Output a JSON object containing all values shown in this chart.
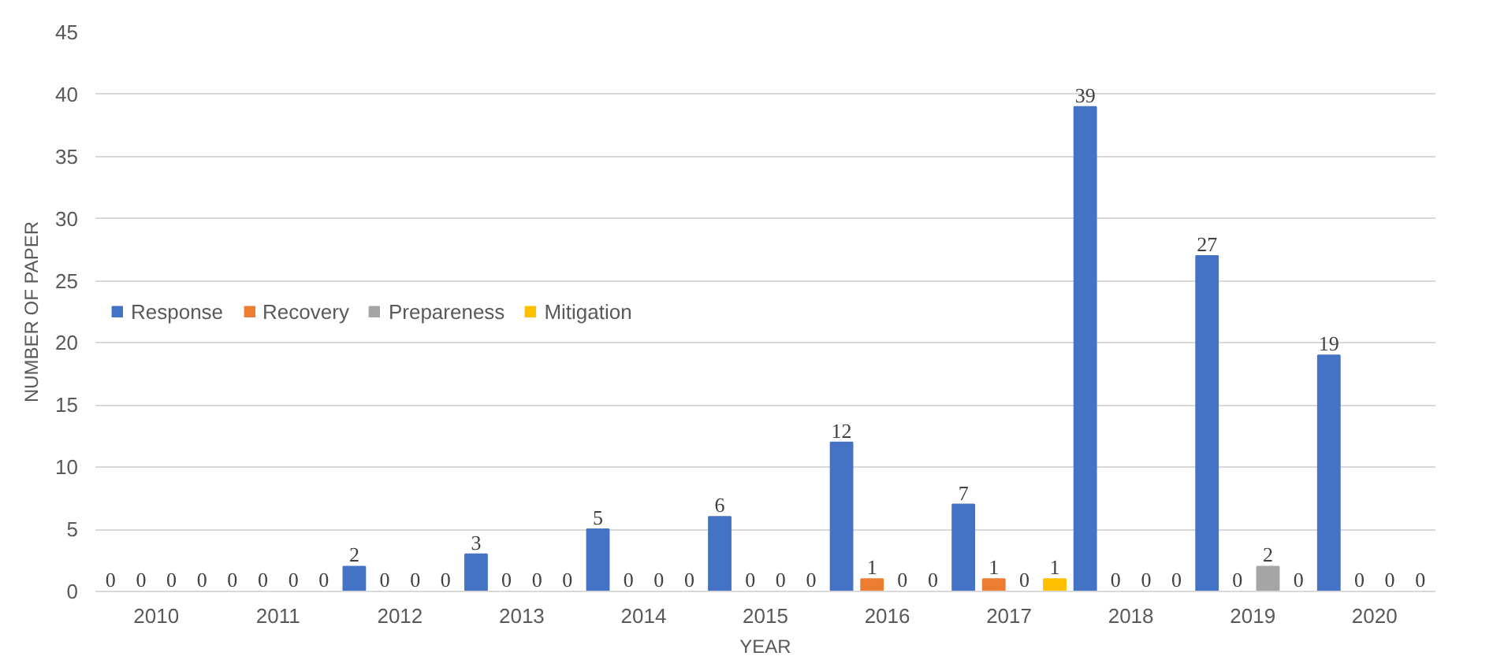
{
  "chart_data": {
    "type": "bar",
    "xlabel": "YEAR",
    "ylabel": "NUMBER OF PAPER",
    "categories": [
      "2010",
      "2011",
      "2012",
      "2013",
      "2014",
      "2015",
      "2016",
      "2017",
      "2018",
      "2019",
      "2020"
    ],
    "series": [
      {
        "name": "Response",
        "color": "#4472c4",
        "values": [
          0,
          0,
          2,
          3,
          5,
          6,
          12,
          7,
          39,
          27,
          19
        ]
      },
      {
        "name": "Recovery",
        "color": "#ed7d31",
        "values": [
          0,
          0,
          0,
          0,
          0,
          0,
          1,
          1,
          0,
          0,
          0
        ]
      },
      {
        "name": "Prepareness",
        "color": "#a5a5a5",
        "values": [
          0,
          0,
          0,
          0,
          0,
          0,
          0,
          0,
          0,
          2,
          0
        ]
      },
      {
        "name": "Mitigation",
        "color": "#ffc000",
        "values": [
          0,
          0,
          0,
          0,
          0,
          0,
          0,
          1,
          0,
          0,
          0
        ]
      }
    ],
    "ylim": [
      0,
      45
    ],
    "yticks": [
      0,
      5,
      10,
      15,
      20,
      25,
      30,
      35,
      40,
      45
    ],
    "grid": "y",
    "legend": "left",
    "data_labels": true
  }
}
